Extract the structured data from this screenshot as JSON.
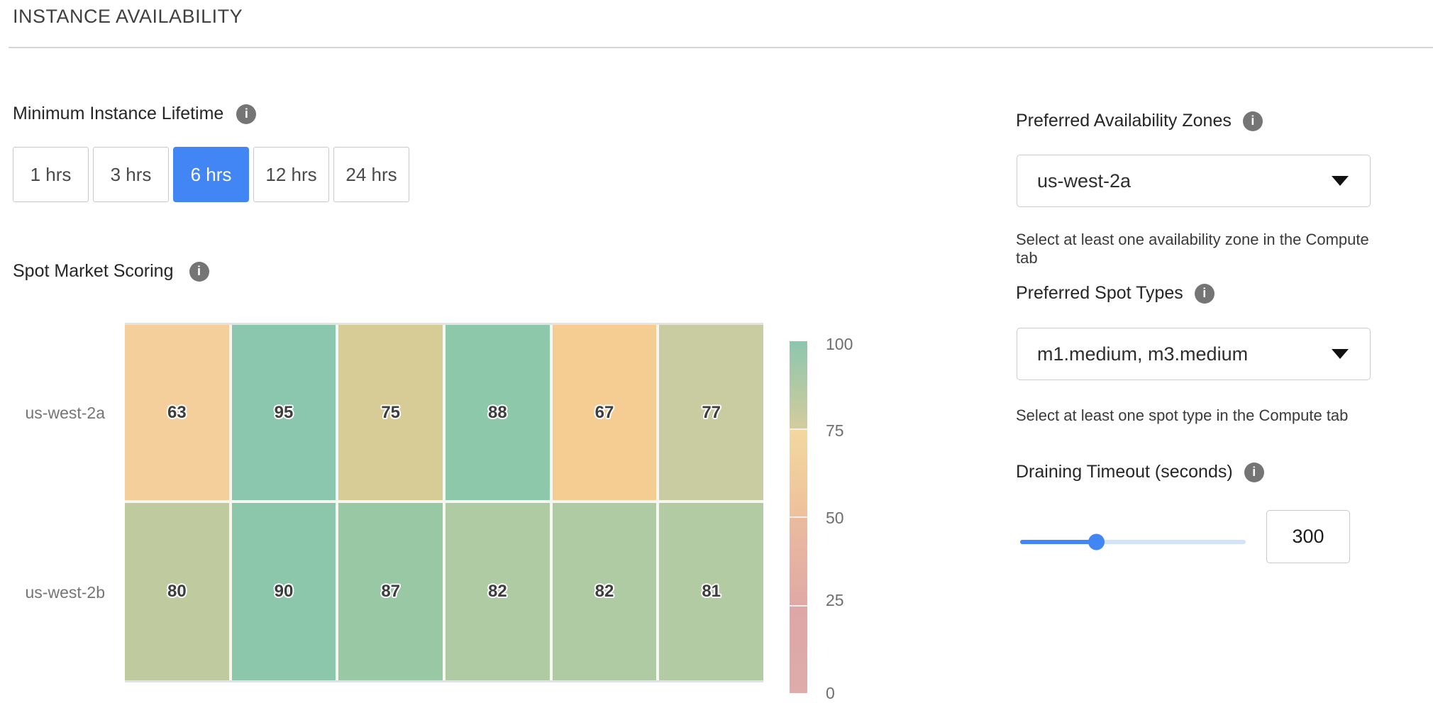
{
  "header": {
    "title": "INSTANCE AVAILABILITY"
  },
  "lifetime": {
    "label": "Minimum Instance Lifetime",
    "selected_value": "6 hrs",
    "selected_color": "#4285F4",
    "options": [
      {
        "label": "1 hrs",
        "selected": false
      },
      {
        "label": "3 hrs",
        "selected": false
      },
      {
        "label": "6 hrs",
        "selected": true
      },
      {
        "label": "12 hrs",
        "selected": false
      },
      {
        "label": "24 hrs",
        "selected": false
      }
    ]
  },
  "scoring": {
    "label": "Spot Market Scoring"
  },
  "chart_data": {
    "type": "heatmap",
    "title": "Spot Market Scoring",
    "y_labels": [
      "us-west-2a",
      "us-west-2b"
    ],
    "x_labels": [
      "",
      "",
      "",
      "",
      "",
      ""
    ],
    "values": [
      [
        63,
        95,
        75,
        88,
        67,
        77
      ],
      [
        80,
        90,
        87,
        82,
        82,
        81
      ]
    ],
    "cell_colors": [
      [
        "#F5CF9B",
        "#8AC7AE",
        "#D7CB96",
        "#8DC8AB",
        "#F5CD93",
        "#C9CCA0"
      ],
      [
        "#BFCB9E",
        "#8CC7AC",
        "#99C8A5",
        "#AECBA3",
        "#AECBA3",
        "#B3CBA2"
      ]
    ],
    "value_range": [
      0,
      100
    ],
    "grid": false,
    "legend": {
      "position": "right",
      "ticks": [
        "100",
        "75",
        "50",
        "25",
        "0"
      ],
      "gradient_segments": [
        [
          "#8CC6AD",
          "#D3CC9D"
        ],
        [
          "#F3D89E",
          "#EEC19C"
        ],
        [
          "#EBBB9E",
          "#E0A9A5"
        ],
        [
          "#DEA6A7",
          "#DFABAB"
        ]
      ]
    }
  },
  "zones": {
    "label": "Preferred Availability Zones",
    "value": "us-west-2a",
    "helper": "Select at least one availability zone in the Compute tab"
  },
  "spot_types": {
    "label": "Preferred Spot Types",
    "value": "m1.medium, m3.medium",
    "helper": "Select at least one spot type in the Compute tab"
  },
  "draining": {
    "label": "Draining Timeout (seconds)",
    "value": "300",
    "slider_percent": 34,
    "slider_color": "#4285F4"
  }
}
